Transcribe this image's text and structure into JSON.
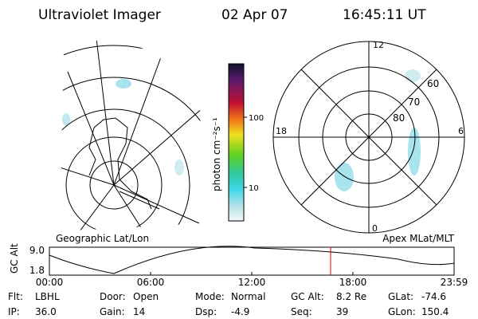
{
  "header": {
    "instrument": "Ultraviolet Imager",
    "date": "02 Apr 07",
    "time": "16:45:11 UT"
  },
  "colorbar": {
    "label": "photon cm⁻²s⁻¹",
    "ticks": [
      "100",
      "10"
    ]
  },
  "left_panel": {
    "label": "Geographic Lat/Lon"
  },
  "right_panel": {
    "label": "Apex MLat/MLT",
    "mlt_labels": [
      "12",
      "18",
      "6",
      "0"
    ],
    "lat_labels": [
      "60",
      "70",
      "80"
    ]
  },
  "timeline": {
    "axis_label": "GC Alt",
    "yticks": [
      "9.0",
      "1.8"
    ],
    "xticks": [
      "00:00",
      "06:00",
      "12:00",
      "18:00",
      "23:59"
    ]
  },
  "info": [
    [
      {
        "label": "Flt:",
        "value": "LBHL"
      },
      {
        "label": "Door:",
        "value": "Open"
      },
      {
        "label": "Mode:",
        "value": "Normal"
      },
      {
        "label": "GC Alt:",
        "value": "8.2 Re"
      },
      {
        "label": "GLat:",
        "value": "-74.6"
      }
    ],
    [
      {
        "label": "IP:",
        "value": "36.0"
      },
      {
        "label": "Gain:",
        "value": "14"
      },
      {
        "label": "Dsp:",
        "value": "-4.9"
      },
      {
        "label": "Seq:",
        "value": "39"
      },
      {
        "label": "GLon:",
        "value": "150.4"
      }
    ]
  ]
}
